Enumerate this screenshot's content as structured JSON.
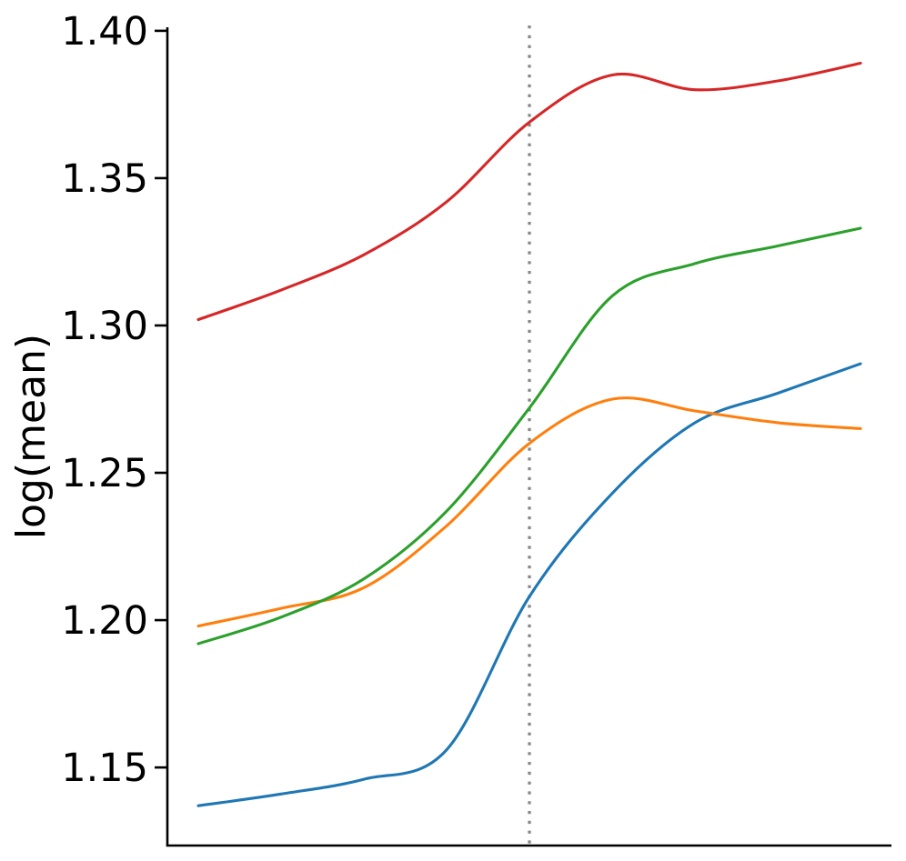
{
  "chart_data": {
    "type": "line",
    "title": "",
    "xlabel": "",
    "ylabel": "log(mean)",
    "x": [
      0,
      1,
      2,
      3,
      4,
      5,
      6,
      7,
      8
    ],
    "x_tick_labels": [],
    "series": [
      {
        "name": "blue-line",
        "color": "#1f77b4",
        "values": [
          1.137,
          1.141,
          1.146,
          1.156,
          1.208,
          1.243,
          1.267,
          1.277,
          1.287
        ]
      },
      {
        "name": "orange-line",
        "color": "#ff7f0e",
        "values": [
          1.198,
          1.204,
          1.211,
          1.232,
          1.26,
          1.275,
          1.271,
          1.267,
          1.265
        ]
      },
      {
        "name": "green-line",
        "color": "#2ca02c",
        "values": [
          1.192,
          1.201,
          1.214,
          1.237,
          1.272,
          1.31,
          1.321,
          1.327,
          1.333
        ]
      },
      {
        "name": "red-line",
        "color": "#d62728",
        "values": [
          1.302,
          1.312,
          1.324,
          1.342,
          1.369,
          1.385,
          1.38,
          1.383,
          1.389
        ]
      }
    ],
    "yticks": [
      1.15,
      1.2,
      1.25,
      1.3,
      1.35,
      1.4
    ],
    "ytick_labels": [
      "1.15",
      "1.20",
      "1.25",
      "1.30",
      "1.35",
      "1.40"
    ],
    "ylim": [
      1.1235,
      1.4012
    ],
    "xlim": [
      -0.4,
      8.4
    ],
    "vline": {
      "x": 4,
      "style": "dotted",
      "color": "#888888"
    },
    "grid": false,
    "legend": null,
    "axis_color": "#000000",
    "text_color": "#000000"
  }
}
